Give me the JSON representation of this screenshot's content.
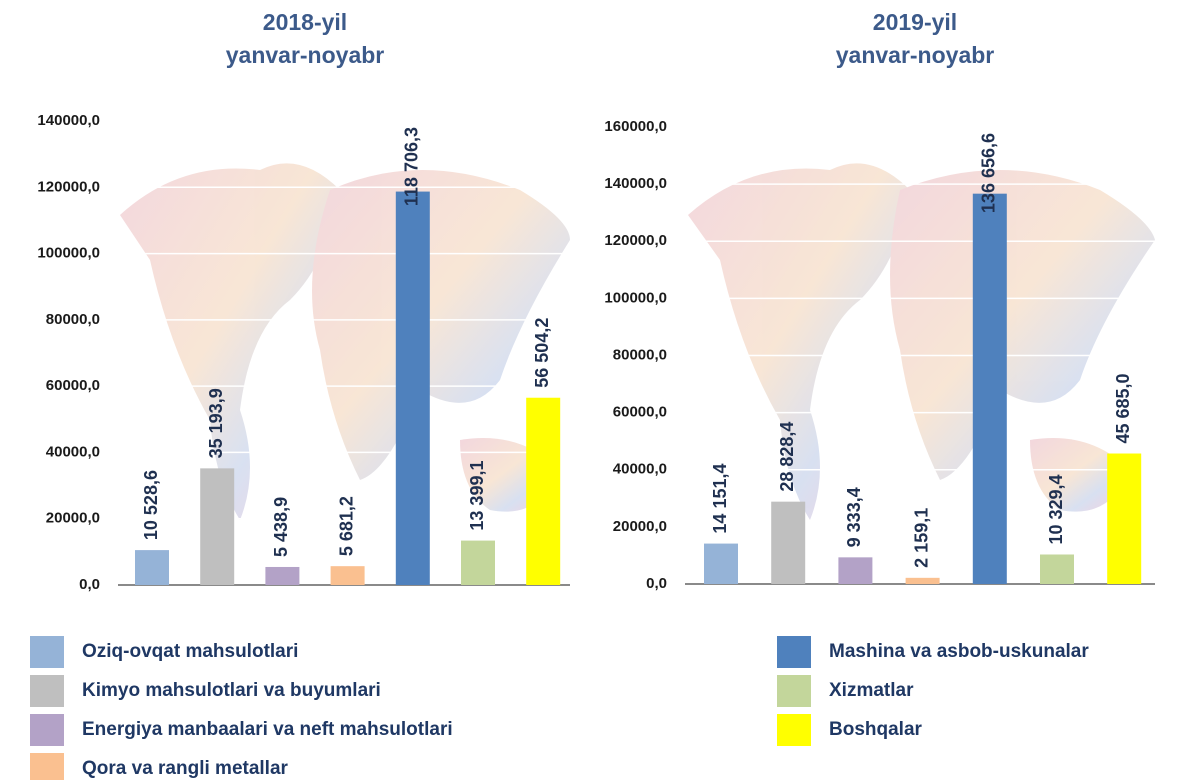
{
  "legend": {
    "items": [
      {
        "name": "Oziq-ovqat mahsulotlari",
        "color": "#95b3d7"
      },
      {
        "name": "Kimyo mahsulotlari va buyumlari",
        "color": "#bfbfbf"
      },
      {
        "name": "Energiya manbaalari va neft mahsulotlari",
        "color": "#b3a2c7"
      },
      {
        "name": "Qora va rangli metallar",
        "color": "#fac090"
      },
      {
        "name": "Mashina va asbob-uskunalar",
        "color": "#4f81bd"
      },
      {
        "name": "Xizmatlar",
        "color": "#c3d69b"
      },
      {
        "name": "Boshqalar",
        "color": "#ffff00"
      }
    ]
  },
  "chart_data": [
    {
      "type": "bar",
      "title": [
        "2018-yil",
        "yanvar-noyabr"
      ],
      "values": [
        10528.6,
        35193.9,
        5438.9,
        5681.2,
        118706.3,
        13399.1,
        56504.2
      ],
      "value_labels": [
        "10 528,6",
        "35 193,9",
        "5 438,9",
        "5 681,2",
        "118 706,3",
        "13 399,1",
        "56 504,2"
      ],
      "ylim": [
        0,
        140000
      ],
      "yticks": [
        {
          "value": 0,
          "label": "0,0"
        },
        {
          "value": 20000,
          "label": "20000,0"
        },
        {
          "value": 40000,
          "label": "40000,0"
        },
        {
          "value": 60000,
          "label": "60000,0"
        },
        {
          "value": 80000,
          "label": "80000,0"
        },
        {
          "value": 100000,
          "label": "100000,0"
        },
        {
          "value": 120000,
          "label": "120000,0"
        },
        {
          "value": 140000,
          "label": "140000,0"
        }
      ],
      "grid": true
    },
    {
      "type": "bar",
      "title": [
        "2019-yil",
        "yanvar-noyabr"
      ],
      "values": [
        14151.4,
        28828.4,
        9333.4,
        2159.1,
        136656.6,
        10329.4,
        45685.0
      ],
      "value_labels": [
        "14 151,4",
        "28 828,4",
        "9 333,4",
        "2 159,1",
        "136 656,6",
        "10 329,4",
        "45 685,0"
      ],
      "ylim": [
        0,
        160000
      ],
      "yticks": [
        {
          "value": 0,
          "label": "0,0"
        },
        {
          "value": 20000,
          "label": "20000,0"
        },
        {
          "value": 40000,
          "label": "40000,0"
        },
        {
          "value": 60000,
          "label": "60000,0"
        },
        {
          "value": 80000,
          "label": "80000,0"
        },
        {
          "value": 100000,
          "label": "100000,0"
        },
        {
          "value": 120000,
          "label": "120000,0"
        },
        {
          "value": 140000,
          "label": "140000,0"
        },
        {
          "value": 160000,
          "label": "160000,0"
        }
      ],
      "grid": true
    }
  ]
}
